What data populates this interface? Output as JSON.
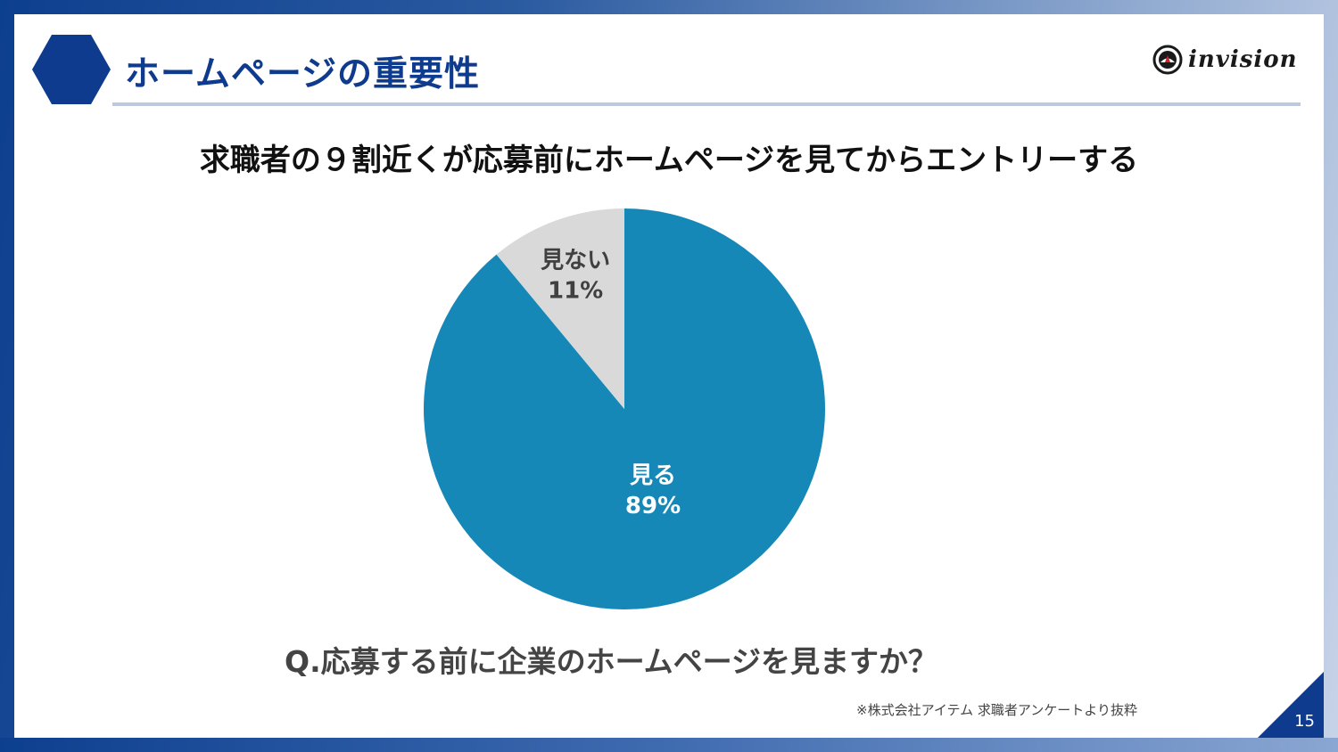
{
  "header": {
    "title": "ホームページの重要性",
    "logo_text": "invision"
  },
  "headline": "求職者の９割近くが応募前にホームページを見てからエントリーする",
  "question": "Q.応募する前に企業のホームページを見ますか？",
  "source_note": "※株式会社アイテム 求職者アンケートより抜粋",
  "page_number": "15",
  "colors": {
    "brand": "#0e3b8e",
    "slice_see": "#1688b8",
    "slice_not_see": "#d9d9d9"
  },
  "chart_data": {
    "type": "pie",
    "categories": [
      "見る",
      "見ない"
    ],
    "values": [
      89,
      11
    ],
    "labels": [
      "89%",
      "11%"
    ],
    "start_angle": "12 o'clock",
    "direction": "clockwise"
  }
}
